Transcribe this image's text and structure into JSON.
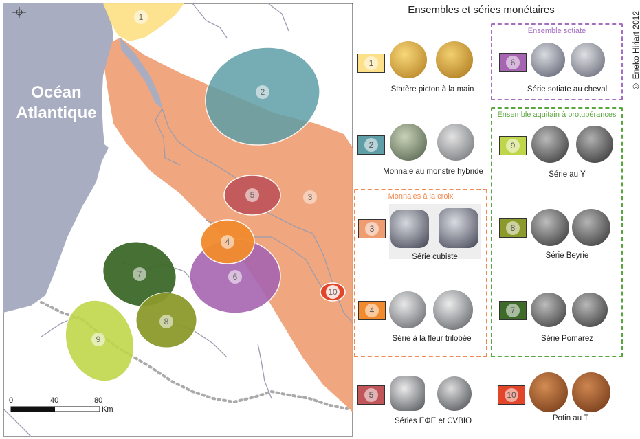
{
  "title": "Ensembles et séries monétaires",
  "credit": "© Eneko Hiriart 2012",
  "ocean_label": [
    "Océan",
    "Atlantique"
  ],
  "scale": {
    "ticks": [
      "0",
      "40",
      "80"
    ],
    "unit": "Km"
  },
  "colors": {
    "ocean": "#a8adc2",
    "zone1": "#fde18a",
    "zone2": "#5f9ea6",
    "zone3": "#ee9c70",
    "zone4": "#f28b2e",
    "zone5": "#c0555a",
    "zone6": "#a665b0",
    "zone7": "#3e6a2a",
    "zone8": "#8c9a2c",
    "zone9": "#c0d64a",
    "zone10": "#e2462a",
    "river": "#9a9db0",
    "border": "#aaaaaa"
  },
  "groups": [
    {
      "id": "sotiate",
      "title": "Ensemble sotiate",
      "color": "#a46fc0"
    },
    {
      "id": "aquitain",
      "title": "Ensemble aquitain à protubérances",
      "color": "#5aa63e"
    },
    {
      "id": "croix",
      "title": "Monnaies à la croix",
      "color": "#ee8a52"
    }
  ],
  "series": [
    {
      "num": "1",
      "caption": "Statère picton à la main",
      "swatch": "#fde18a",
      "coin": "gold-coin-icon"
    },
    {
      "num": "2",
      "caption": "Monnaie au monstre hybride",
      "swatch": "#5f9ea6",
      "coin": "silver-coin-icon"
    },
    {
      "num": "3",
      "caption": "Série cubiste",
      "swatch": "#ee9c70",
      "coin": "silver-coin-icon"
    },
    {
      "num": "4",
      "caption": "Série à la fleur trilobée",
      "swatch": "#f28b2e",
      "coin": "silver-coin-icon"
    },
    {
      "num": "5",
      "caption": "Séries EΦE et CVBIO",
      "swatch": "#c0555a",
      "coin": "silver-coin-icon"
    },
    {
      "num": "6",
      "caption": "Série sotiate au cheval",
      "swatch": "#a665b0",
      "coin": "silver-coin-icon"
    },
    {
      "num": "9",
      "caption": "Série au Y",
      "swatch": "#c0d64a",
      "coin": "dark-coin-icon"
    },
    {
      "num": "8",
      "caption": "Série Beyrie",
      "swatch": "#8c9a2c",
      "coin": "dark-coin-icon"
    },
    {
      "num": "7",
      "caption": "Série Pomarez",
      "swatch": "#3e6a2a",
      "coin": "dark-coin-icon"
    },
    {
      "num": "10",
      "caption": "Potin au T",
      "swatch": "#e2462a",
      "coin": "bronze-coin-icon"
    }
  ],
  "zones": [
    {
      "num": "1"
    },
    {
      "num": "2"
    },
    {
      "num": "3"
    },
    {
      "num": "4"
    },
    {
      "num": "5"
    },
    {
      "num": "6"
    },
    {
      "num": "7"
    },
    {
      "num": "8"
    },
    {
      "num": "9"
    },
    {
      "num": "10"
    }
  ]
}
